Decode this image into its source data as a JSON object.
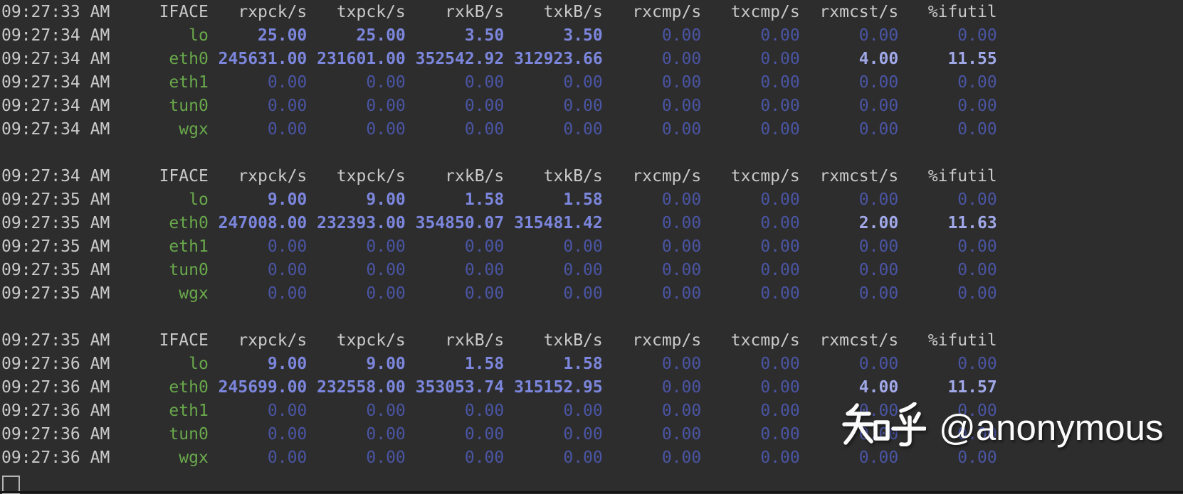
{
  "terminal": {
    "background": "#2d2d2d",
    "colors": {
      "gray": "#cacaca",
      "green": "#69a94b",
      "value_bright": "#7b86dc",
      "value_light": "#a0a8e8",
      "value_dim": "#4a55a4",
      "cursor": "#b5b5b5",
      "bottom_edge": "#161616"
    },
    "columns": [
      "IFACE",
      "rxpck/s",
      "txpck/s",
      "rxkB/s",
      "txkB/s",
      "rxcmp/s",
      "txcmp/s",
      "rxmcst/s",
      "%ifutil"
    ],
    "blocks": [
      {
        "header_time": "09:27:33 AM",
        "rows": [
          {
            "time": "09:27:34 AM",
            "iface": "lo",
            "values": [
              "25.00",
              "25.00",
              "3.50",
              "3.50",
              "0.00",
              "0.00",
              "0.00",
              "0.00"
            ],
            "styles": [
              "mid",
              "mid",
              "mid",
              "mid",
              "dim",
              "dim",
              "dim",
              "dim"
            ]
          },
          {
            "time": "09:27:34 AM",
            "iface": "eth0",
            "values": [
              "245631.00",
              "231601.00",
              "352542.92",
              "312923.66",
              "0.00",
              "0.00",
              "4.00",
              "11.55"
            ],
            "styles": [
              "mid",
              "mid",
              "mid",
              "mid",
              "dim",
              "dim",
              "light",
              "light"
            ]
          },
          {
            "time": "09:27:34 AM",
            "iface": "eth1",
            "values": [
              "0.00",
              "0.00",
              "0.00",
              "0.00",
              "0.00",
              "0.00",
              "0.00",
              "0.00"
            ],
            "styles": [
              "dim",
              "dim",
              "dim",
              "dim",
              "dim",
              "dim",
              "dim",
              "dim"
            ]
          },
          {
            "time": "09:27:34 AM",
            "iface": "tun0",
            "values": [
              "0.00",
              "0.00",
              "0.00",
              "0.00",
              "0.00",
              "0.00",
              "0.00",
              "0.00"
            ],
            "styles": [
              "dim",
              "dim",
              "dim",
              "dim",
              "dim",
              "dim",
              "dim",
              "dim"
            ]
          },
          {
            "time": "09:27:34 AM",
            "iface": "wgx",
            "values": [
              "0.00",
              "0.00",
              "0.00",
              "0.00",
              "0.00",
              "0.00",
              "0.00",
              "0.00"
            ],
            "styles": [
              "dim",
              "dim",
              "dim",
              "dim",
              "dim",
              "dim",
              "dim",
              "dim"
            ]
          }
        ]
      },
      {
        "header_time": "09:27:34 AM",
        "rows": [
          {
            "time": "09:27:35 AM",
            "iface": "lo",
            "values": [
              "9.00",
              "9.00",
              "1.58",
              "1.58",
              "0.00",
              "0.00",
              "0.00",
              "0.00"
            ],
            "styles": [
              "mid",
              "mid",
              "mid",
              "mid",
              "dim",
              "dim",
              "dim",
              "dim"
            ]
          },
          {
            "time": "09:27:35 AM",
            "iface": "eth0",
            "values": [
              "247008.00",
              "232393.00",
              "354850.07",
              "315481.42",
              "0.00",
              "0.00",
              "2.00",
              "11.63"
            ],
            "styles": [
              "mid",
              "mid",
              "mid",
              "mid",
              "dim",
              "dim",
              "light",
              "light"
            ]
          },
          {
            "time": "09:27:35 AM",
            "iface": "eth1",
            "values": [
              "0.00",
              "0.00",
              "0.00",
              "0.00",
              "0.00",
              "0.00",
              "0.00",
              "0.00"
            ],
            "styles": [
              "dim",
              "dim",
              "dim",
              "dim",
              "dim",
              "dim",
              "dim",
              "dim"
            ]
          },
          {
            "time": "09:27:35 AM",
            "iface": "tun0",
            "values": [
              "0.00",
              "0.00",
              "0.00",
              "0.00",
              "0.00",
              "0.00",
              "0.00",
              "0.00"
            ],
            "styles": [
              "dim",
              "dim",
              "dim",
              "dim",
              "dim",
              "dim",
              "dim",
              "dim"
            ]
          },
          {
            "time": "09:27:35 AM",
            "iface": "wgx",
            "values": [
              "0.00",
              "0.00",
              "0.00",
              "0.00",
              "0.00",
              "0.00",
              "0.00",
              "0.00"
            ],
            "styles": [
              "dim",
              "dim",
              "dim",
              "dim",
              "dim",
              "dim",
              "dim",
              "dim"
            ]
          }
        ]
      },
      {
        "header_time": "09:27:35 AM",
        "rows": [
          {
            "time": "09:27:36 AM",
            "iface": "lo",
            "values": [
              "9.00",
              "9.00",
              "1.58",
              "1.58",
              "0.00",
              "0.00",
              "0.00",
              "0.00"
            ],
            "styles": [
              "mid",
              "mid",
              "mid",
              "mid",
              "dim",
              "dim",
              "dim",
              "dim"
            ]
          },
          {
            "time": "09:27:36 AM",
            "iface": "eth0",
            "values": [
              "245699.00",
              "232558.00",
              "353053.74",
              "315152.95",
              "0.00",
              "0.00",
              "4.00",
              "11.57"
            ],
            "styles": [
              "mid",
              "mid",
              "mid",
              "mid",
              "dim",
              "dim",
              "light",
              "light"
            ]
          },
          {
            "time": "09:27:36 AM",
            "iface": "eth1",
            "values": [
              "0.00",
              "0.00",
              "0.00",
              "0.00",
              "0.00",
              "0.00",
              "0.00",
              "0.00"
            ],
            "styles": [
              "dim",
              "dim",
              "dim",
              "dim",
              "dim",
              "dim",
              "dim",
              "dim"
            ]
          },
          {
            "time": "09:27:36 AM",
            "iface": "tun0",
            "values": [
              "0.00",
              "0.00",
              "0.00",
              "0.00",
              "0.00",
              "0.00",
              "0.00",
              "0.00"
            ],
            "styles": [
              "dim",
              "dim",
              "dim",
              "dim",
              "dim",
              "dim",
              "dim",
              "dim"
            ]
          },
          {
            "time": "09:27:36 AM",
            "iface": "wgx",
            "values": [
              "0.00",
              "0.00",
              "0.00",
              "0.00",
              "0.00",
              "0.00",
              "0.00",
              "0.00"
            ],
            "styles": [
              "dim",
              "dim",
              "dim",
              "dim",
              "dim",
              "dim",
              "dim",
              "dim"
            ]
          }
        ]
      }
    ],
    "cursor_visible": true
  },
  "watermark": {
    "brand": "知乎",
    "handle": "@anonymous",
    "color": "#fbfbfb"
  }
}
